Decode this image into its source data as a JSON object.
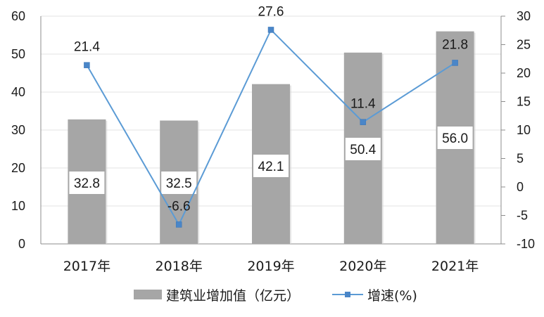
{
  "chart_data": {
    "type": "bar+line",
    "title": "",
    "categories": [
      "2017年",
      "2018年",
      "2019年",
      "2020年",
      "2021年"
    ],
    "series": [
      {
        "name": "建筑业增加值（亿元）",
        "type": "bar",
        "axis": "left",
        "values": [
          32.8,
          32.5,
          42.1,
          50.4,
          56.0
        ],
        "labels": [
          "32.8",
          "32.5",
          "42.1",
          "50.4",
          "56.0"
        ],
        "color": "#a6a6a6"
      },
      {
        "name": "增速(%)",
        "type": "line",
        "axis": "right",
        "values": [
          21.4,
          -6.6,
          27.6,
          11.4,
          21.8
        ],
        "labels": [
          "21.4",
          "-6.6",
          "27.6",
          "11.4",
          "21.8"
        ],
        "color": "#5b9bd5"
      }
    ],
    "left_axis": {
      "min": 0,
      "max": 60,
      "step": 10,
      "ticks": [
        "0",
        "10",
        "20",
        "30",
        "40",
        "50",
        "60"
      ]
    },
    "right_axis": {
      "min": -10,
      "max": 30,
      "step": 5,
      "ticks": [
        "-10",
        "-5",
        "0",
        "5",
        "10",
        "15",
        "20",
        "25",
        "30"
      ]
    },
    "grid": true,
    "legend_position": "bottom",
    "xlabel": "",
    "ylabel": "",
    "y2label": ""
  },
  "legend": {
    "bar_label": "建筑业增加值（亿元）",
    "line_label": "增速(%)"
  }
}
